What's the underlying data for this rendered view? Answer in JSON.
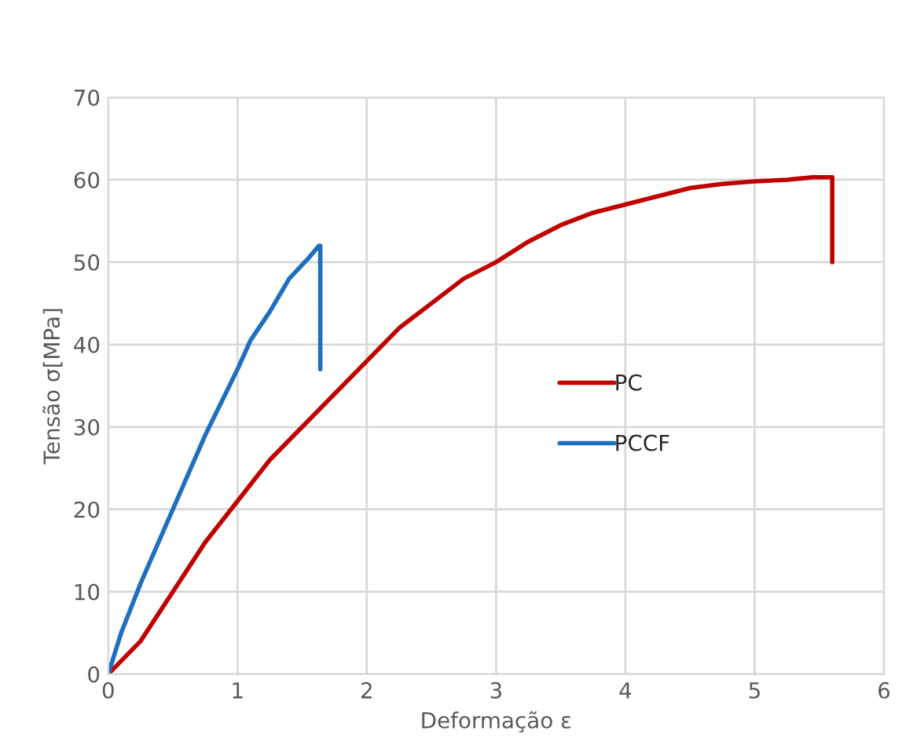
{
  "chart_data": {
    "type": "line",
    "xlabel": "Deformação ε",
    "ylabel": "Tensão σ[MPa]",
    "xlim": [
      0,
      6
    ],
    "xticks": [
      0,
      1,
      2,
      3,
      4,
      5,
      6
    ],
    "ylim": [
      0,
      70
    ],
    "yticks": [
      0,
      10,
      20,
      30,
      40,
      50,
      60,
      70
    ],
    "grid": true,
    "legend": "right",
    "marker": "none",
    "line_style": "solid",
    "series": [
      {
        "name": "PC",
        "color": "#c00000",
        "x": [
          0,
          0.25,
          0.5,
          0.75,
          1,
          1.25,
          1.5,
          1.75,
          2,
          2.25,
          2.5,
          2.75,
          3,
          3.25,
          3.5,
          3.75,
          4,
          4.25,
          4.5,
          4.75,
          5,
          5.25,
          5.45,
          5.6,
          5.6
        ],
        "values": [
          0,
          4,
          10,
          16,
          21,
          26,
          30,
          34,
          38,
          42,
          45,
          48,
          50,
          52.5,
          54.5,
          56,
          57,
          58,
          59,
          59.5,
          59.8,
          60,
          60.3,
          60.3,
          50
        ]
      },
      {
        "name": "PCCF",
        "color": "#1f6fbf",
        "x": [
          0,
          0.1,
          0.25,
          0.5,
          0.75,
          1,
          1.1,
          1.25,
          1.4,
          1.55,
          1.63,
          1.64,
          1.64
        ],
        "values": [
          0,
          5,
          11,
          20,
          29,
          37,
          40.5,
          44,
          48,
          50.5,
          52,
          52,
          37
        ]
      }
    ]
  }
}
